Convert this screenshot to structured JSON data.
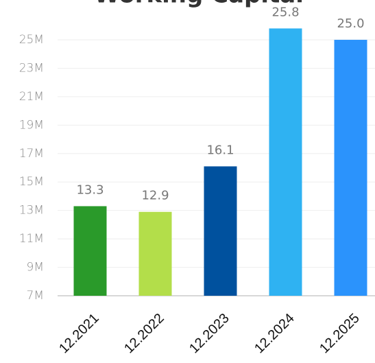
{
  "chart_data": {
    "type": "bar",
    "title": "Working Capital",
    "categories": [
      "12.2021",
      "12.2022",
      "12.2023",
      "12.2024",
      "12.2025"
    ],
    "values": [
      13.3,
      12.9,
      16.1,
      25.8,
      25
    ],
    "value_labels": [
      "13.3",
      "12.9",
      "16.1",
      "25.8",
      "25.0"
    ],
    "colors": [
      "#2a9a2a",
      "#b3de4a",
      "#00519e",
      "#2fb2f2",
      "#2b93fc"
    ],
    "ylim": [
      7,
      26
    ],
    "yticks": [
      {
        "value": 7,
        "label": "7M"
      },
      {
        "value": 9,
        "label": "9M"
      },
      {
        "value": 11,
        "label": "11M"
      },
      {
        "value": 13,
        "label": "13M"
      },
      {
        "value": 15,
        "label": "15M"
      },
      {
        "value": 17,
        "label": "17M"
      },
      {
        "value": 19,
        "label": "19M"
      },
      {
        "value": 21,
        "label": "21M"
      },
      {
        "value": 23,
        "label": "23M"
      },
      {
        "value": 25,
        "label": "25M"
      }
    ],
    "grid": true
  }
}
